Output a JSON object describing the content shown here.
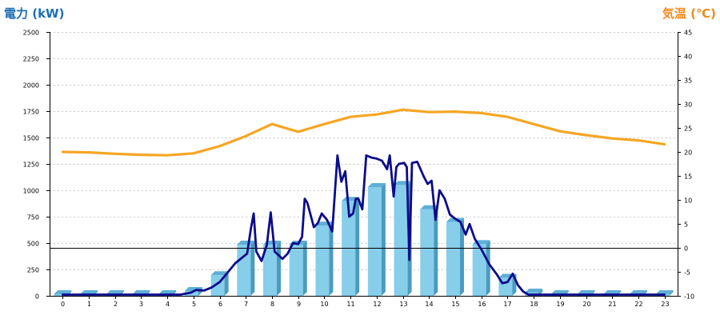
{
  "chart_data": {
    "type": "bar+line",
    "title_left": "電力 (kW)",
    "title_right": "気温 (℃)",
    "colors": {
      "left_title": "#1a6fb5",
      "right_title": "#f08a1c",
      "bar_front": "#87ceeb",
      "bar_side": "#4a9bbf",
      "bar_top": "#5eafd6",
      "power_line": "#0b0b8c",
      "temp_line": "#f5a623",
      "grid": "#c8c8c8"
    },
    "x_categories": [
      "0",
      "1",
      "2",
      "3",
      "4",
      "5",
      "6",
      "7",
      "8",
      "9",
      "10",
      "11",
      "12",
      "13",
      "14",
      "15",
      "16",
      "17",
      "18",
      "19",
      "20",
      "21",
      "22",
      "23"
    ],
    "y_left": {
      "min": 0,
      "max": 2500,
      "ticks": [
        "0",
        "250",
        "500",
        "750",
        "1000",
        "1250",
        "1500",
        "1750",
        "2000",
        "2250",
        "2500"
      ]
    },
    "y_right": {
      "min": -10,
      "max": 45,
      "ticks": [
        "-10",
        "-5",
        "0",
        "5",
        "10",
        "15",
        "20",
        "25",
        "30",
        "35",
        "40",
        "45"
      ]
    },
    "bars": [
      {
        "x": 0,
        "value": 15
      },
      {
        "x": 1,
        "value": 15
      },
      {
        "x": 2,
        "value": 15
      },
      {
        "x": 3,
        "value": 15
      },
      {
        "x": 4,
        "value": 15
      },
      {
        "x": 5,
        "value": 45
      },
      {
        "x": 6,
        "value": 195
      },
      {
        "x": 7,
        "value": 485
      },
      {
        "x": 8,
        "value": 485
      },
      {
        "x": 9,
        "value": 485
      },
      {
        "x": 10,
        "value": 665
      },
      {
        "x": 11,
        "value": 900
      },
      {
        "x": 12,
        "value": 1030
      },
      {
        "x": 13,
        "value": 1050
      },
      {
        "x": 14,
        "value": 820
      },
      {
        "x": 15,
        "value": 700
      },
      {
        "x": 16,
        "value": 490
      },
      {
        "x": 17,
        "value": 170
      },
      {
        "x": 18,
        "value": 30
      },
      {
        "x": 19,
        "value": 15
      },
      {
        "x": 20,
        "value": 15
      },
      {
        "x": 21,
        "value": 15
      },
      {
        "x": 22,
        "value": 15
      },
      {
        "x": 23,
        "value": 15
      }
    ],
    "power_line": [
      [
        0.0,
        0
      ],
      [
        4.5,
        0
      ],
      [
        4.9,
        30
      ],
      [
        5.1,
        55
      ],
      [
        5.4,
        50
      ],
      [
        5.7,
        80
      ],
      [
        6.0,
        130
      ],
      [
        6.3,
        220
      ],
      [
        6.6,
        310
      ],
      [
        6.9,
        370
      ],
      [
        7.05,
        400
      ],
      [
        7.2,
        650
      ],
      [
        7.3,
        780
      ],
      [
        7.4,
        420
      ],
      [
        7.6,
        330
      ],
      [
        7.8,
        480
      ],
      [
        7.95,
        790
      ],
      [
        8.1,
        420
      ],
      [
        8.4,
        350
      ],
      [
        8.6,
        400
      ],
      [
        8.8,
        500
      ],
      [
        9.0,
        490
      ],
      [
        9.15,
        560
      ],
      [
        9.25,
        920
      ],
      [
        9.35,
        880
      ],
      [
        9.6,
        650
      ],
      [
        9.75,
        690
      ],
      [
        9.9,
        780
      ],
      [
        10.1,
        720
      ],
      [
        10.3,
        610
      ],
      [
        10.5,
        1330
      ],
      [
        10.65,
        1080
      ],
      [
        10.8,
        1180
      ],
      [
        10.95,
        750
      ],
      [
        11.1,
        780
      ],
      [
        11.2,
        920
      ],
      [
        11.3,
        920
      ],
      [
        11.45,
        820
      ],
      [
        11.6,
        1330
      ],
      [
        11.8,
        1310
      ],
      [
        12.0,
        1300
      ],
      [
        12.2,
        1280
      ],
      [
        12.4,
        1200
      ],
      [
        12.5,
        1330
      ],
      [
        12.65,
        940
      ],
      [
        12.75,
        1220
      ],
      [
        12.85,
        1250
      ],
      [
        13.05,
        1260
      ],
      [
        13.15,
        1220
      ],
      [
        13.25,
        340
      ],
      [
        13.35,
        1260
      ],
      [
        13.55,
        1270
      ],
      [
        13.8,
        1130
      ],
      [
        13.95,
        1060
      ],
      [
        14.1,
        1090
      ],
      [
        14.25,
        720
      ],
      [
        14.4,
        1000
      ],
      [
        14.6,
        920
      ],
      [
        14.8,
        770
      ],
      [
        15.0,
        730
      ],
      [
        15.2,
        700
      ],
      [
        15.4,
        580
      ],
      [
        15.55,
        680
      ],
      [
        15.75,
        540
      ],
      [
        16.0,
        440
      ],
      [
        16.3,
        300
      ],
      [
        16.6,
        200
      ],
      [
        16.8,
        120
      ],
      [
        17.0,
        130
      ],
      [
        17.2,
        210
      ],
      [
        17.4,
        100
      ],
      [
        17.6,
        40
      ],
      [
        17.8,
        0
      ],
      [
        23.0,
        0
      ]
    ],
    "temperature_line": [
      [
        0,
        20.0
      ],
      [
        1,
        19.9
      ],
      [
        2,
        19.6
      ],
      [
        3,
        19.4
      ],
      [
        4,
        19.3
      ],
      [
        5,
        19.7
      ],
      [
        6,
        21.2
      ],
      [
        7,
        23.3
      ],
      [
        8,
        25.8
      ],
      [
        9,
        24.2
      ],
      [
        10,
        25.8
      ],
      [
        11,
        27.3
      ],
      [
        12,
        27.8
      ],
      [
        13,
        28.8
      ],
      [
        14,
        28.3
      ],
      [
        15,
        28.4
      ],
      [
        16,
        28.1
      ],
      [
        17,
        27.3
      ],
      [
        18,
        25.8
      ],
      [
        19,
        24.3
      ],
      [
        20,
        23.5
      ],
      [
        21,
        22.8
      ],
      [
        22,
        22.4
      ],
      [
        23,
        21.6
      ]
    ],
    "grid": true,
    "legend": "none"
  }
}
